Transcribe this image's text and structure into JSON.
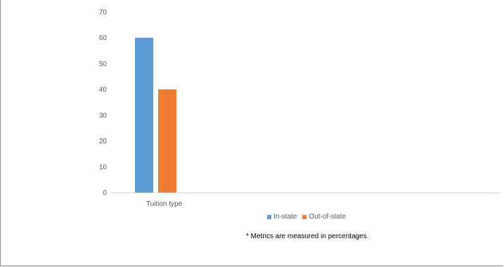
{
  "chart_data": {
    "type": "bar",
    "categories": [
      "Tuition type"
    ],
    "series": [
      {
        "name": "In-state",
        "values": [
          60
        ],
        "color": "#5B9BD5"
      },
      {
        "name": "Out-of-state",
        "values": [
          40
        ],
        "color": "#ED7D31"
      }
    ],
    "yticks": [
      "0",
      "10",
      "20",
      "30",
      "40",
      "50",
      "60",
      "70"
    ],
    "ylim": [
      0,
      70
    ],
    "grid": false,
    "legend_position": "bottom",
    "footnote": "* Metrics are measured in percentages."
  }
}
